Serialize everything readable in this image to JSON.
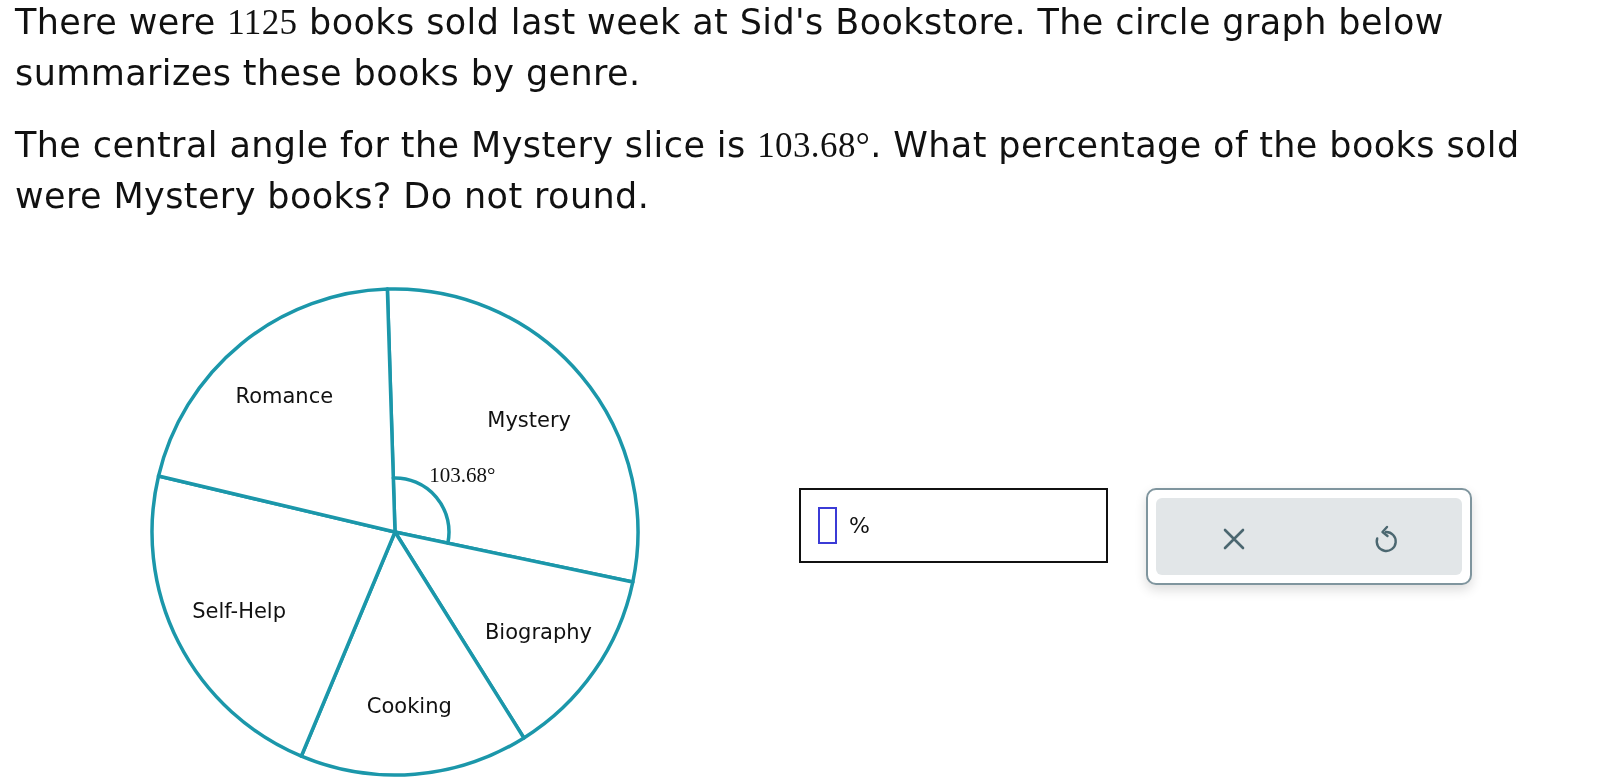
{
  "chart_data": {
    "type": "pie",
    "title": "There were 1125 books sold last week at Sid's Bookstore. The circle graph below summarizes these books by genre.",
    "subtitle": "The central angle for the Mystery slice is 103.68°. What percentage of the books sold were Mystery books? Do not round.",
    "categories": [
      "Mystery",
      "Biography",
      "Cooking",
      "Self-Help",
      "Romance"
    ],
    "values": [
      28.8,
      12.8,
      15.2,
      22.4,
      20.8
    ],
    "colors": [
      "#ffffff",
      "#ffffff",
      "#ffffff",
      "#ffffff",
      "#ffffff"
    ],
    "annotations": [
      "103.68°",
      "%"
    ]
  }
}
